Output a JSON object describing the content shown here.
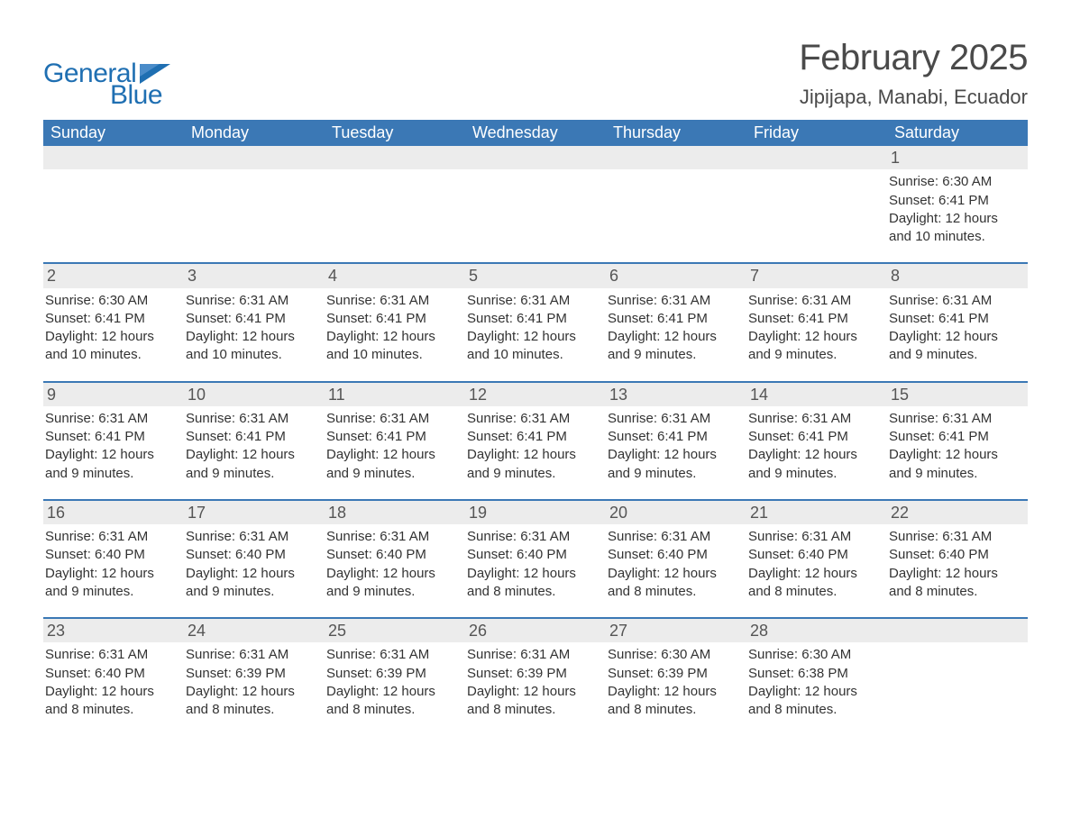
{
  "brand": {
    "word1": "General",
    "word2": "Blue",
    "color": "#1f6fb2"
  },
  "title": "February 2025",
  "location": "Jipijapa, Manabi, Ecuador",
  "colors": {
    "header_row": "#3b78b5",
    "day_bg": "#ececec",
    "rule": "#3b78b5",
    "background": "#ffffff",
    "text": "#333333"
  },
  "dowHeaders": [
    "Sunday",
    "Monday",
    "Tuesday",
    "Wednesday",
    "Thursday",
    "Friday",
    "Saturday"
  ],
  "weeks": [
    [
      null,
      null,
      null,
      null,
      null,
      null,
      {
        "n": "1",
        "sunrise": "Sunrise: 6:30 AM",
        "sunset": "Sunset: 6:41 PM",
        "daylight": "Daylight: 12 hours and 10 minutes."
      }
    ],
    [
      {
        "n": "2",
        "sunrise": "Sunrise: 6:30 AM",
        "sunset": "Sunset: 6:41 PM",
        "daylight": "Daylight: 12 hours and 10 minutes."
      },
      {
        "n": "3",
        "sunrise": "Sunrise: 6:31 AM",
        "sunset": "Sunset: 6:41 PM",
        "daylight": "Daylight: 12 hours and 10 minutes."
      },
      {
        "n": "4",
        "sunrise": "Sunrise: 6:31 AM",
        "sunset": "Sunset: 6:41 PM",
        "daylight": "Daylight: 12 hours and 10 minutes."
      },
      {
        "n": "5",
        "sunrise": "Sunrise: 6:31 AM",
        "sunset": "Sunset: 6:41 PM",
        "daylight": "Daylight: 12 hours and 10 minutes."
      },
      {
        "n": "6",
        "sunrise": "Sunrise: 6:31 AM",
        "sunset": "Sunset: 6:41 PM",
        "daylight": "Daylight: 12 hours and 9 minutes."
      },
      {
        "n": "7",
        "sunrise": "Sunrise: 6:31 AM",
        "sunset": "Sunset: 6:41 PM",
        "daylight": "Daylight: 12 hours and 9 minutes."
      },
      {
        "n": "8",
        "sunrise": "Sunrise: 6:31 AM",
        "sunset": "Sunset: 6:41 PM",
        "daylight": "Daylight: 12 hours and 9 minutes."
      }
    ],
    [
      {
        "n": "9",
        "sunrise": "Sunrise: 6:31 AM",
        "sunset": "Sunset: 6:41 PM",
        "daylight": "Daylight: 12 hours and 9 minutes."
      },
      {
        "n": "10",
        "sunrise": "Sunrise: 6:31 AM",
        "sunset": "Sunset: 6:41 PM",
        "daylight": "Daylight: 12 hours and 9 minutes."
      },
      {
        "n": "11",
        "sunrise": "Sunrise: 6:31 AM",
        "sunset": "Sunset: 6:41 PM",
        "daylight": "Daylight: 12 hours and 9 minutes."
      },
      {
        "n": "12",
        "sunrise": "Sunrise: 6:31 AM",
        "sunset": "Sunset: 6:41 PM",
        "daylight": "Daylight: 12 hours and 9 minutes."
      },
      {
        "n": "13",
        "sunrise": "Sunrise: 6:31 AM",
        "sunset": "Sunset: 6:41 PM",
        "daylight": "Daylight: 12 hours and 9 minutes."
      },
      {
        "n": "14",
        "sunrise": "Sunrise: 6:31 AM",
        "sunset": "Sunset: 6:41 PM",
        "daylight": "Daylight: 12 hours and 9 minutes."
      },
      {
        "n": "15",
        "sunrise": "Sunrise: 6:31 AM",
        "sunset": "Sunset: 6:41 PM",
        "daylight": "Daylight: 12 hours and 9 minutes."
      }
    ],
    [
      {
        "n": "16",
        "sunrise": "Sunrise: 6:31 AM",
        "sunset": "Sunset: 6:40 PM",
        "daylight": "Daylight: 12 hours and 9 minutes."
      },
      {
        "n": "17",
        "sunrise": "Sunrise: 6:31 AM",
        "sunset": "Sunset: 6:40 PM",
        "daylight": "Daylight: 12 hours and 9 minutes."
      },
      {
        "n": "18",
        "sunrise": "Sunrise: 6:31 AM",
        "sunset": "Sunset: 6:40 PM",
        "daylight": "Daylight: 12 hours and 9 minutes."
      },
      {
        "n": "19",
        "sunrise": "Sunrise: 6:31 AM",
        "sunset": "Sunset: 6:40 PM",
        "daylight": "Daylight: 12 hours and 8 minutes."
      },
      {
        "n": "20",
        "sunrise": "Sunrise: 6:31 AM",
        "sunset": "Sunset: 6:40 PM",
        "daylight": "Daylight: 12 hours and 8 minutes."
      },
      {
        "n": "21",
        "sunrise": "Sunrise: 6:31 AM",
        "sunset": "Sunset: 6:40 PM",
        "daylight": "Daylight: 12 hours and 8 minutes."
      },
      {
        "n": "22",
        "sunrise": "Sunrise: 6:31 AM",
        "sunset": "Sunset: 6:40 PM",
        "daylight": "Daylight: 12 hours and 8 minutes."
      }
    ],
    [
      {
        "n": "23",
        "sunrise": "Sunrise: 6:31 AM",
        "sunset": "Sunset: 6:40 PM",
        "daylight": "Daylight: 12 hours and 8 minutes."
      },
      {
        "n": "24",
        "sunrise": "Sunrise: 6:31 AM",
        "sunset": "Sunset: 6:39 PM",
        "daylight": "Daylight: 12 hours and 8 minutes."
      },
      {
        "n": "25",
        "sunrise": "Sunrise: 6:31 AM",
        "sunset": "Sunset: 6:39 PM",
        "daylight": "Daylight: 12 hours and 8 minutes."
      },
      {
        "n": "26",
        "sunrise": "Sunrise: 6:31 AM",
        "sunset": "Sunset: 6:39 PM",
        "daylight": "Daylight: 12 hours and 8 minutes."
      },
      {
        "n": "27",
        "sunrise": "Sunrise: 6:30 AM",
        "sunset": "Sunset: 6:39 PM",
        "daylight": "Daylight: 12 hours and 8 minutes."
      },
      {
        "n": "28",
        "sunrise": "Sunrise: 6:30 AM",
        "sunset": "Sunset: 6:38 PM",
        "daylight": "Daylight: 12 hours and 8 minutes."
      },
      null
    ]
  ]
}
